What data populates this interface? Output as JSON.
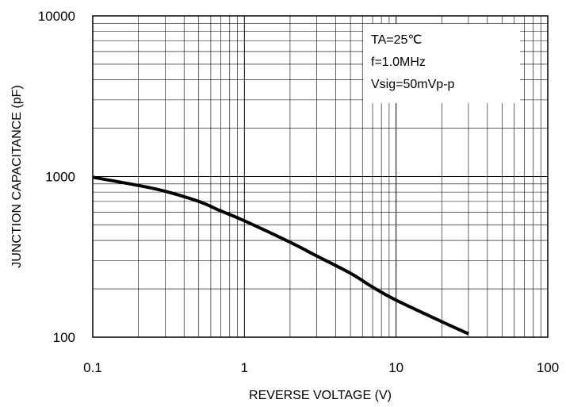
{
  "chart_data": {
    "type": "line",
    "xlabel": "REVERSE VOLTAGE (V)",
    "ylabel": "JUNCTION CAPACITANCE (pF)",
    "xscale": "log",
    "yscale": "log",
    "xlim": [
      0.1,
      100
    ],
    "ylim": [
      100,
      10000
    ],
    "grid": true,
    "x_tick_labels": [
      "0.1",
      "1",
      "10",
      "100"
    ],
    "y_tick_labels": [
      "100",
      "1000",
      "10000"
    ],
    "annotation_lines": [
      "TA=25℃",
      "f=1.0MHz",
      "Vsig=50mVp-p"
    ],
    "annotation_position": "top-right",
    "series": [
      {
        "color": "#000000",
        "x": [
          0.1,
          0.2,
          0.3,
          0.5,
          0.7,
          1,
          2,
          3,
          5,
          7,
          10,
          20,
          30
        ],
        "y": [
          990,
          880,
          810,
          700,
          610,
          530,
          390,
          320,
          250,
          205,
          170,
          125,
          105
        ]
      }
    ]
  }
}
